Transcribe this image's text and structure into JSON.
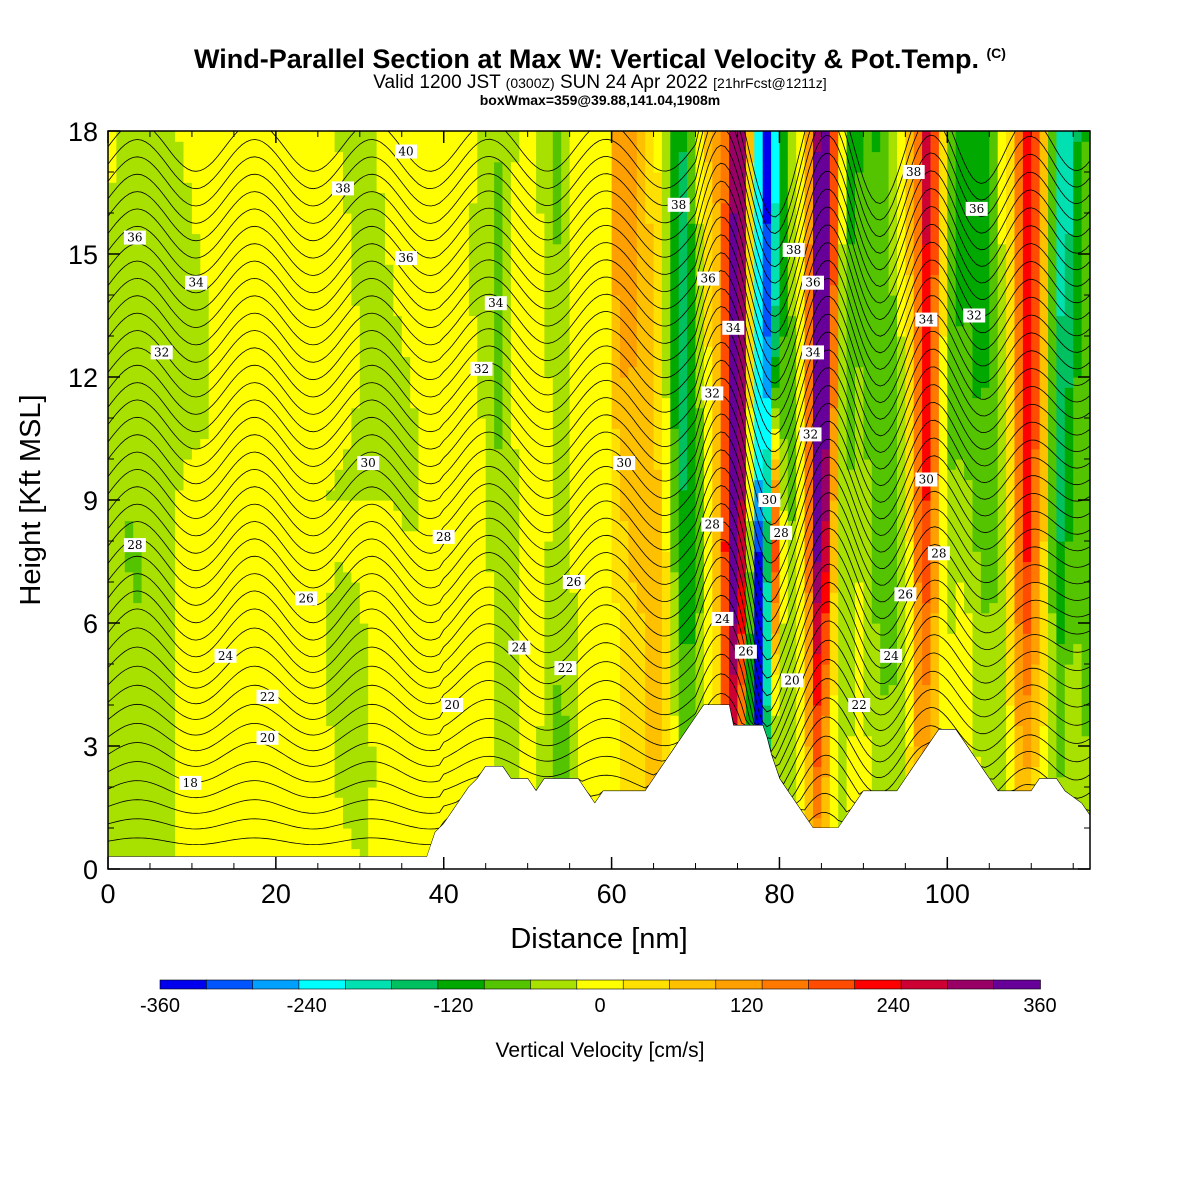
{
  "header": {
    "title": "Wind-Parallel Section at Max W: Vertical Velocity & Pot.Temp.",
    "title_mark": "(C)",
    "valid_prefix": "Valid 1200 JST",
    "valid_utc": "(0300Z)",
    "valid_date": "SUN 24 Apr 2022",
    "forecast_tag": "[21hrFcst@1211z]",
    "box_max": "boxWmax=359@39.88,141.04,1908m"
  },
  "chart_data": {
    "type": "heatmap",
    "xlabel": "Distance [nm]",
    "ylabel": "Height [Kft MSL]",
    "xlim": [
      0,
      117
    ],
    "ylim": [
      0,
      18
    ],
    "x_ticks": [
      "0",
      "20",
      "40",
      "60",
      "80",
      "100"
    ],
    "y_ticks": [
      "0",
      "3",
      "6",
      "9",
      "12",
      "15",
      "18"
    ],
    "field": "Vertical Velocity",
    "colorbar": {
      "title": "Vertical Velocity [cm/s]",
      "levels": [
        -360,
        -330,
        -300,
        -270,
        -240,
        -210,
        -180,
        -150,
        -120,
        -90,
        -60,
        -30,
        0,
        30,
        60,
        90,
        120,
        150,
        180,
        210,
        240,
        270,
        300,
        330,
        360
      ],
      "labels": [
        "-360",
        "-240",
        "-120",
        "0",
        "120",
        "240",
        "360"
      ],
      "colors": [
        "#0000ee",
        "#0055ff",
        "#00a0ff",
        "#00ffff",
        "#00e0b0",
        "#00c060",
        "#00a800",
        "#55c400",
        "#a8e000",
        "#ffff00",
        "#ffe000",
        "#ffc000",
        "#ffa000",
        "#ff7800",
        "#ff4c00",
        "#ff0000",
        "#cc0033",
        "#990066",
        "#660099"
      ]
    },
    "wave_bands": [
      {
        "x": 74.5,
        "value": 300
      },
      {
        "x": 77.5,
        "value": -240
      },
      {
        "x": 84.5,
        "value": 300
      },
      {
        "x": 87.5,
        "value": -120
      },
      {
        "x": 97.0,
        "value": 150
      },
      {
        "x": 100.0,
        "value": -90
      },
      {
        "x": 109.0,
        "value": 150
      },
      {
        "x": 113.0,
        "value": -150
      },
      {
        "x": 66.0,
        "value": 90
      },
      {
        "x": 69.0,
        "value": -60
      },
      {
        "x": 54.0,
        "value": -60
      },
      {
        "x": 47.0,
        "value": -60
      }
    ],
    "contour_field": "Pot.Temp. (C)",
    "contour_labels": [
      {
        "text": "40",
        "x": 35.5,
        "y": 17.5
      },
      {
        "text": "38",
        "x": 28.0,
        "y": 16.6
      },
      {
        "text": "38",
        "x": 68.0,
        "y": 16.2
      },
      {
        "text": "38",
        "x": 96.0,
        "y": 17.0
      },
      {
        "text": "36",
        "x": 3.2,
        "y": 15.4
      },
      {
        "text": "36",
        "x": 35.5,
        "y": 14.9
      },
      {
        "text": "36",
        "x": 71.5,
        "y": 14.4
      },
      {
        "text": "36",
        "x": 103.5,
        "y": 16.1
      },
      {
        "text": "38",
        "x": 81.7,
        "y": 15.1
      },
      {
        "text": "36",
        "x": 84.0,
        "y": 14.3
      },
      {
        "text": "34",
        "x": 10.5,
        "y": 14.3
      },
      {
        "text": "34",
        "x": 46.2,
        "y": 13.8
      },
      {
        "text": "34",
        "x": 74.5,
        "y": 13.2
      },
      {
        "text": "34",
        "x": 84.0,
        "y": 12.6
      },
      {
        "text": "34",
        "x": 97.5,
        "y": 13.4
      },
      {
        "text": "32",
        "x": 6.4,
        "y": 12.6
      },
      {
        "text": "32",
        "x": 44.5,
        "y": 12.2
      },
      {
        "text": "32",
        "x": 72.0,
        "y": 11.6
      },
      {
        "text": "32",
        "x": 83.7,
        "y": 10.6
      },
      {
        "text": "32",
        "x": 103.2,
        "y": 13.5
      },
      {
        "text": "30",
        "x": 31.0,
        "y": 9.9
      },
      {
        "text": "30",
        "x": 61.5,
        "y": 9.9
      },
      {
        "text": "30",
        "x": 78.8,
        "y": 9.0
      },
      {
        "text": "30",
        "x": 97.5,
        "y": 9.5
      },
      {
        "text": "28",
        "x": 3.2,
        "y": 7.9
      },
      {
        "text": "28",
        "x": 40.0,
        "y": 8.1
      },
      {
        "text": "28",
        "x": 72.0,
        "y": 8.4
      },
      {
        "text": "28",
        "x": 80.2,
        "y": 8.2
      },
      {
        "text": "28",
        "x": 99.0,
        "y": 7.7
      },
      {
        "text": "26",
        "x": 23.6,
        "y": 6.6
      },
      {
        "text": "26",
        "x": 55.5,
        "y": 7.0
      },
      {
        "text": "26",
        "x": 95.0,
        "y": 6.7
      },
      {
        "text": "26",
        "x": 76.0,
        "y": 5.3
      },
      {
        "text": "24",
        "x": 14.0,
        "y": 5.2
      },
      {
        "text": "24",
        "x": 49.0,
        "y": 5.4
      },
      {
        "text": "24",
        "x": 73.2,
        "y": 6.1
      },
      {
        "text": "24",
        "x": 93.3,
        "y": 5.2
      },
      {
        "text": "22",
        "x": 19.0,
        "y": 4.2
      },
      {
        "text": "22",
        "x": 54.5,
        "y": 4.9
      },
      {
        "text": "22",
        "x": 89.5,
        "y": 4.0
      },
      {
        "text": "20",
        "x": 19.0,
        "y": 3.2
      },
      {
        "text": "20",
        "x": 41.0,
        "y": 4.0
      },
      {
        "text": "20",
        "x": 81.5,
        "y": 4.6
      },
      {
        "text": "18",
        "x": 9.8,
        "y": 2.1
      }
    ],
    "terrain_kft": [
      [
        0,
        0.3
      ],
      [
        38,
        0.3
      ],
      [
        38.5,
        0.6
      ],
      [
        39,
        0.9
      ],
      [
        40,
        1.1
      ],
      [
        41,
        1.4
      ],
      [
        42,
        1.7
      ],
      [
        43,
        2.0
      ],
      [
        44,
        2.2
      ],
      [
        45,
        2.5
      ],
      [
        47,
        2.5
      ],
      [
        48,
        2.2
      ],
      [
        50,
        2.2
      ],
      [
        51,
        1.9
      ],
      [
        52,
        2.2
      ],
      [
        56,
        2.2
      ],
      [
        57,
        1.9
      ],
      [
        58,
        1.6
      ],
      [
        59,
        1.9
      ],
      [
        64,
        1.9
      ],
      [
        65,
        2.2
      ],
      [
        66,
        2.5
      ],
      [
        67,
        2.8
      ],
      [
        68,
        3.1
      ],
      [
        69,
        3.4
      ],
      [
        70,
        3.7
      ],
      [
        71,
        4.0
      ],
      [
        74,
        4.0
      ],
      [
        74.5,
        3.5
      ],
      [
        78,
        3.5
      ],
      [
        78.5,
        3.2
      ],
      [
        79,
        2.8
      ],
      [
        79.5,
        2.5
      ],
      [
        80,
        2.2
      ],
      [
        81,
        1.9
      ],
      [
        82,
        1.6
      ],
      [
        83,
        1.3
      ],
      [
        84,
        1.0
      ],
      [
        87,
        1.0
      ],
      [
        88,
        1.3
      ],
      [
        89,
        1.6
      ],
      [
        90,
        1.9
      ],
      [
        94,
        1.9
      ],
      [
        95,
        2.2
      ],
      [
        96,
        2.5
      ],
      [
        97,
        2.8
      ],
      [
        98,
        3.1
      ],
      [
        99,
        3.4
      ],
      [
        101,
        3.4
      ],
      [
        102,
        3.1
      ],
      [
        103,
        2.8
      ],
      [
        104,
        2.5
      ],
      [
        105,
        2.2
      ],
      [
        106,
        1.9
      ],
      [
        110,
        1.9
      ],
      [
        111,
        2.2
      ],
      [
        113,
        2.2
      ],
      [
        114,
        1.9
      ],
      [
        116,
        1.6
      ],
      [
        117,
        1.3
      ]
    ]
  }
}
